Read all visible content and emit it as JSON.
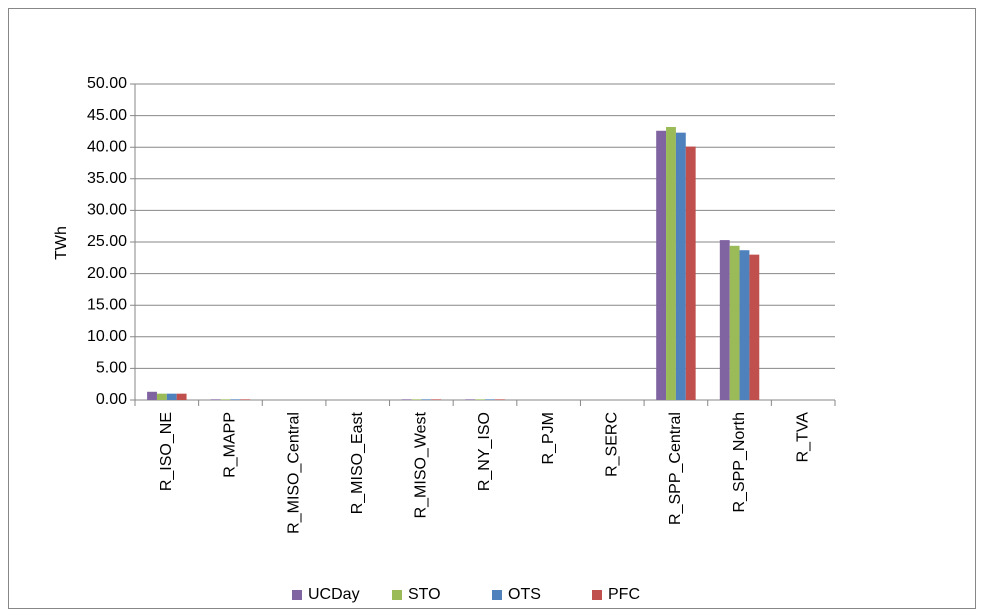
{
  "chart_data": {
    "type": "bar",
    "y_label": "TWh",
    "categories": [
      "R_ISO_NE",
      "R_MAPP",
      "R_MISO_Central",
      "R_MISO_East",
      "R_MISO_West",
      "R_NY_ISO",
      "R_PJM",
      "R_SERC",
      "R_SPP_Central",
      "R_SPP_North",
      "R_TVA"
    ],
    "series": [
      {
        "name": "UCDay",
        "color": "#8064a2",
        "values": [
          1.3,
          0.1,
          0,
          0,
          0.1,
          0.1,
          0,
          0,
          42.6,
          25.3,
          0
        ]
      },
      {
        "name": "STO",
        "color": "#9bbb59",
        "values": [
          1.0,
          0.1,
          0,
          0,
          0.1,
          0.1,
          0,
          0,
          43.2,
          24.4,
          0
        ]
      },
      {
        "name": "OTS",
        "color": "#4f81bd",
        "values": [
          1.0,
          0.1,
          0,
          0,
          0.1,
          0.1,
          0,
          0,
          42.3,
          23.7,
          0
        ]
      },
      {
        "name": "PFC",
        "color": "#c0504d",
        "values": [
          1.0,
          0.1,
          0,
          0,
          0.1,
          0.1,
          0,
          0,
          40.1,
          23.0,
          0
        ]
      }
    ],
    "ylim": [
      0,
      50
    ],
    "yticks": [
      {
        "value": 0,
        "label": "0.00"
      },
      {
        "value": 5,
        "label": "5.00"
      },
      {
        "value": 10,
        "label": "10.00"
      },
      {
        "value": 15,
        "label": "15.00"
      },
      {
        "value": 20,
        "label": "20.00"
      },
      {
        "value": 25,
        "label": "25.00"
      },
      {
        "value": 30,
        "label": "30.00"
      },
      {
        "value": 35,
        "label": "35.00"
      },
      {
        "value": 40,
        "label": "40.00"
      },
      {
        "value": 45,
        "label": "45.00"
      },
      {
        "value": 50,
        "label": "50.00"
      }
    ],
    "grid": true,
    "legend": "bottom"
  }
}
